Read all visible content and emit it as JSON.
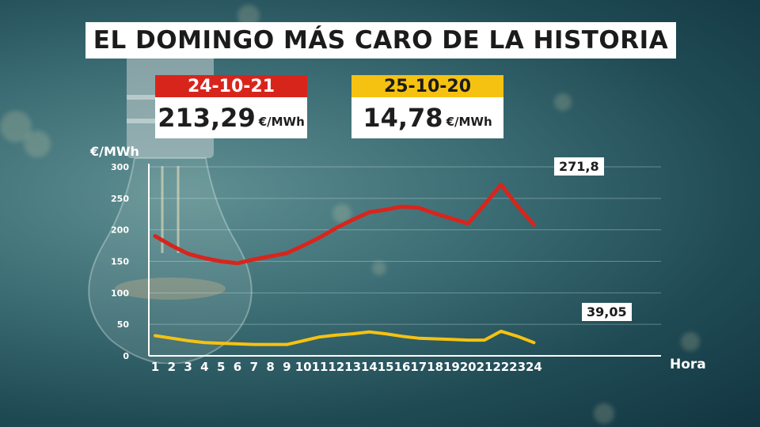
{
  "title": "EL DOMINGO MÁS CARO DE LA HISTORIA",
  "cards": [
    {
      "date": "24-10-21",
      "value": "213,29",
      "unit": "€/MWh",
      "color": "#d8251c"
    },
    {
      "date": "25-10-20",
      "value": "14,78",
      "unit": "€/MWh",
      "color": "#f5c211"
    }
  ],
  "chart_data": {
    "type": "line",
    "ylabel": "€/MWh",
    "xlabel": "Hora",
    "ylim": [
      0,
      300
    ],
    "yticks": [
      0,
      50,
      100,
      150,
      200,
      250,
      300
    ],
    "x": [
      1,
      2,
      3,
      4,
      5,
      6,
      7,
      8,
      9,
      10,
      11,
      12,
      13,
      14,
      15,
      16,
      17,
      18,
      19,
      20,
      21,
      22,
      23,
      24
    ],
    "grid": true,
    "series": [
      {
        "color": "#d8251c",
        "values": [
          190,
          175,
          162,
          155,
          150,
          147,
          153,
          158,
          163,
          175,
          188,
          203,
          216,
          228,
          232,
          237,
          235,
          226,
          218,
          210,
          240,
          271.8,
          238,
          208
        ],
        "annotation": {
          "x": 21,
          "label": "271,8"
        }
      },
      {
        "color": "#f5c211",
        "values": [
          32,
          28,
          24,
          21,
          20,
          19,
          18,
          18,
          18,
          24,
          30,
          33,
          35,
          38,
          35,
          31,
          28,
          27,
          26,
          25,
          25,
          39.05,
          31,
          21
        ],
        "annotation": {
          "x": 22,
          "label": "39,05"
        }
      }
    ]
  }
}
